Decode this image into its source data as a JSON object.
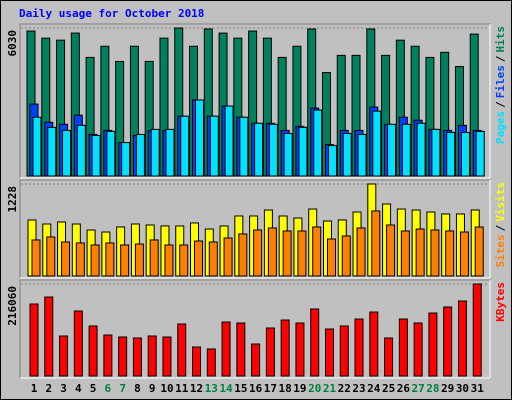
{
  "chart_data": [
    {
      "type": "bar",
      "title": "Daily usage for October 2018",
      "legend_separator": "/",
      "ylim": [
        0,
        6030
      ],
      "yticks": [
        6030
      ],
      "series": [
        {
          "name": "Hits",
          "color": "#00805c",
          "values": [
            5906,
            5617,
            5534,
            5823,
            4832,
            5287,
            4667,
            5287,
            4667,
            5617,
            6030,
            5287,
            5990,
            5823,
            5617,
            5906,
            5617,
            4832,
            5287,
            5989,
            4213,
            4915,
            4915,
            5989,
            4915,
            5534,
            5287,
            4832,
            5039,
            4460,
            5782
          ]
        },
        {
          "name": "Files",
          "color": "#0040ff",
          "values": [
            2932,
            2189,
            2106,
            2478,
            1693,
            1858,
            1363,
            1652,
            1858,
            1858,
            2437,
            3098,
            2437,
            2850,
            2395,
            2148,
            2148,
            1858,
            2024,
            2767,
            1280,
            1858,
            1858,
            2808,
            2106,
            2395,
            2272,
            1900,
            1858,
            2065,
            1858
          ]
        },
        {
          "name": "Pages",
          "color": "#00e0ff",
          "values": [
            2395,
            1982,
            1858,
            2065,
            1652,
            1817,
            1363,
            1693,
            1900,
            1900,
            2437,
            3098,
            2437,
            2850,
            2395,
            2148,
            2106,
            1735,
            1982,
            2685,
            1239,
            1735,
            1693,
            2643,
            2106,
            2106,
            2148,
            1900,
            1776,
            1776,
            1817
          ]
        }
      ]
    },
    {
      "type": "bar",
      "legend_separator": "/",
      "ylim": [
        0,
        1228
      ],
      "yticks": [
        1228
      ],
      "series": [
        {
          "name": "Visits",
          "color": "#ffff00",
          "values": [
            748,
            694,
            721,
            694,
            614,
            587,
            654,
            694,
            681,
            668,
            668,
            708,
            627,
            668,
            801,
            801,
            881,
            801,
            774,
            894,
            734,
            748,
            854,
            1228,
            961,
            894,
            881,
            854,
            828,
            828,
            881
          ]
        },
        {
          "name": "Sites",
          "color": "#ff8000",
          "values": [
            481,
            521,
            454,
            441,
            414,
            441,
            414,
            427,
            481,
            414,
            414,
            467,
            454,
            507,
            561,
            614,
            641,
            601,
            601,
            654,
            494,
            534,
            641,
            868,
            681,
            601,
            627,
            614,
            601,
            587,
            654
          ]
        }
      ]
    },
    {
      "type": "bar",
      "ylim": [
        0,
        216060
      ],
      "yticks": [
        216060
      ],
      "categories": [
        "1",
        "2",
        "3",
        "4",
        "5",
        "6",
        "7",
        "8",
        "9",
        "10",
        "11",
        "12",
        "13",
        "14",
        "15",
        "16",
        "17",
        "18",
        "19",
        "20",
        "21",
        "22",
        "23",
        "24",
        "25",
        "26",
        "27",
        "28",
        "29",
        "30",
        "31"
      ],
      "category_colors": [
        "#000",
        "#000",
        "#000",
        "#000",
        "#000",
        "#008040",
        "#008040",
        "#000",
        "#000",
        "#000",
        "#000",
        "#000",
        "#008040",
        "#008040",
        "#000",
        "#000",
        "#000",
        "#000",
        "#000",
        "#008040",
        "#008040",
        "#000",
        "#000",
        "#000",
        "#000",
        "#000",
        "#008040",
        "#008040",
        "#000",
        "#000",
        "#000"
      ],
      "series": [
        {
          "name": "KBytes",
          "color": "#ff0000",
          "values": [
            169056,
            185492,
            93920,
            152620,
            117400,
            96268,
            91572,
            89224,
            93920,
            91572,
            122096,
            68092,
            63396,
            126792,
            124444,
            75136,
            112704,
            131488,
            124444,
            157316,
            110356,
            117400,
            133836,
            150272,
            89224,
            133836,
            124444,
            147924,
            162012,
            176100,
            216060
          ]
        }
      ]
    }
  ]
}
